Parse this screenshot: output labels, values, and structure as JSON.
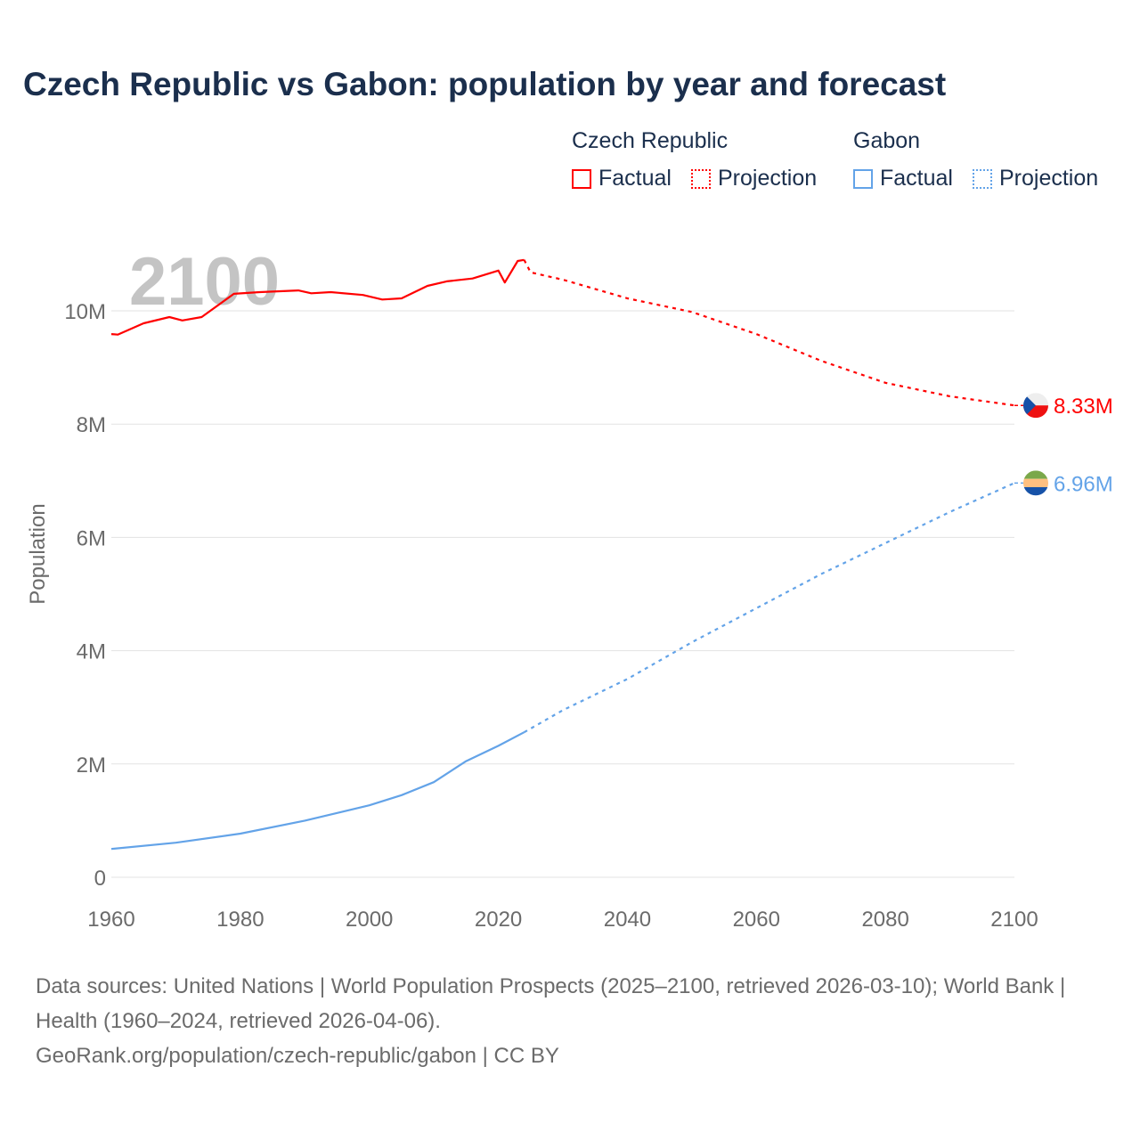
{
  "title": "Czech Republic vs Gabon: population by year and forecast",
  "legend": {
    "groups": [
      {
        "name": "Czech Republic",
        "color": "#ff0000",
        "items": [
          "Factual",
          "Projection"
        ]
      },
      {
        "name": "Gabon",
        "color": "#63a3e8",
        "items": [
          "Factual",
          "Projection"
        ]
      }
    ]
  },
  "year_label": "2100",
  "footer": {
    "sources": "Data sources: United Nations | World Population Prospects (2025–2100, retrieved 2026-03-10); World Bank | Health (1960–2024, retrieved 2026-04-06).",
    "credit": "GeoRank.org/population/czech-republic/gabon | CC BY"
  },
  "chart_data": {
    "type": "line",
    "title": "Czech Republic vs Gabon: population by year and forecast",
    "xlabel": "",
    "ylabel": "Population",
    "xlim": [
      1960,
      2100
    ],
    "ylim": [
      0,
      11000000
    ],
    "xticks": [
      1960,
      1980,
      2000,
      2020,
      2040,
      2060,
      2080,
      2100
    ],
    "xtick_labels": [
      "1960",
      "1980",
      "2000",
      "2020",
      "2040",
      "2060",
      "2080",
      "2100"
    ],
    "yticks": [
      0,
      2000000,
      4000000,
      6000000,
      8000000,
      10000000
    ],
    "ytick_labels": [
      "0",
      "2M",
      "4M",
      "6M",
      "8M",
      "10M"
    ],
    "grid": true,
    "legend_position": "top-right",
    "series": [
      {
        "name": "Czech Republic",
        "kind": "Factual",
        "color": "#ff0000",
        "dashed": false,
        "x": [
          1960,
          1961,
          1965,
          1969,
          1971,
          1974,
          1979,
          1983,
          1989,
          1991,
          1994,
          1999,
          2002,
          2005,
          2009,
          2012,
          2016,
          2020,
          2021,
          2023,
          2024
        ],
        "y": [
          9.59,
          9.58,
          9.78,
          9.89,
          9.83,
          9.89,
          10.3,
          10.33,
          10.36,
          10.31,
          10.33,
          10.28,
          10.2,
          10.22,
          10.44,
          10.52,
          10.57,
          10.71,
          10.5,
          10.88,
          10.9
        ]
      },
      {
        "name": "Czech Republic",
        "kind": "Projection",
        "color": "#ff0000",
        "dashed": true,
        "x": [
          2024,
          2025,
          2030,
          2040,
          2050,
          2060,
          2070,
          2080,
          2090,
          2100
        ],
        "y": [
          10.9,
          10.68,
          10.55,
          10.22,
          9.98,
          9.59,
          9.12,
          8.73,
          8.49,
          8.33
        ]
      },
      {
        "name": "Gabon",
        "kind": "Factual",
        "color": "#63a3e8",
        "dashed": false,
        "x": [
          1960,
          1970,
          1980,
          1990,
          2000,
          2005,
          2010,
          2015,
          2020,
          2024
        ],
        "y": [
          0.5,
          0.61,
          0.77,
          1.0,
          1.27,
          1.45,
          1.68,
          2.05,
          2.32,
          2.56
        ]
      },
      {
        "name": "Gabon",
        "kind": "Projection",
        "color": "#63a3e8",
        "dashed": true,
        "x": [
          2024,
          2030,
          2040,
          2050,
          2060,
          2070,
          2080,
          2090,
          2100
        ],
        "y": [
          2.56,
          2.95,
          3.5,
          4.15,
          4.75,
          5.35,
          5.9,
          6.45,
          6.96
        ]
      }
    ],
    "end_labels": [
      {
        "series": "Czech Republic",
        "text": "8.33M",
        "value": 8.33,
        "color": "#ff0000",
        "flag": "czech-flag"
      },
      {
        "series": "Gabon",
        "text": "6.96M",
        "value": 6.96,
        "color": "#63a3e8",
        "flag": "gabon-flag"
      }
    ],
    "y_unit": "millions"
  }
}
